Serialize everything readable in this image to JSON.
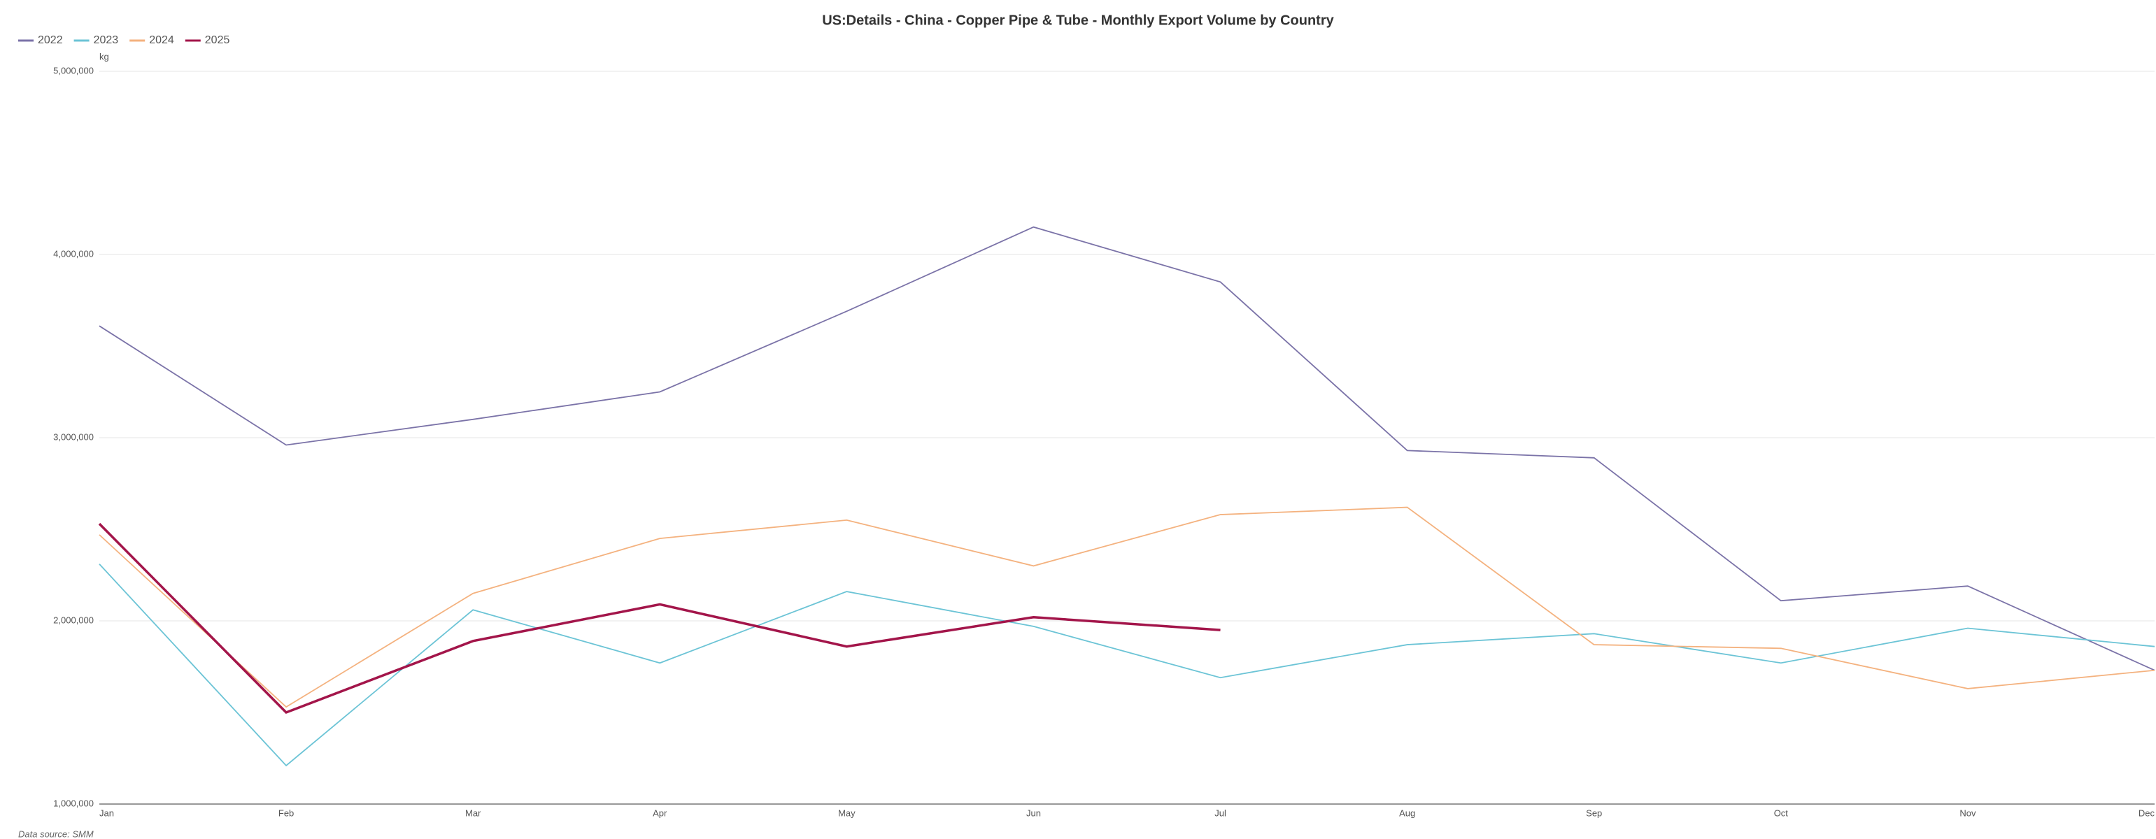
{
  "chart_data": {
    "type": "line",
    "title": "US:Details - China - Copper Pipe & Tube - Monthly Export Volume by Country",
    "y_unit": "kg",
    "source": "Data source:  SMM",
    "categories": [
      "Jan",
      "Feb",
      "Mar",
      "Apr",
      "May",
      "Jun",
      "Jul",
      "Aug",
      "Sep",
      "Oct",
      "Nov",
      "Dec"
    ],
    "series": [
      {
        "name": "2022",
        "color": "#7b73a8",
        "values": [
          3610000,
          2960000,
          3100000,
          3250000,
          3690000,
          4150000,
          3850000,
          2930000,
          2890000,
          2110000,
          2190000,
          1730000
        ]
      },
      {
        "name": "2023",
        "color": "#6cc4d6",
        "values": [
          2310000,
          1210000,
          2060000,
          1770000,
          2160000,
          1970000,
          1690000,
          1870000,
          1930000,
          1770000,
          1960000,
          1860000
        ]
      },
      {
        "name": "2024",
        "color": "#f4b27f",
        "values": [
          2470000,
          1530000,
          2150000,
          2450000,
          2550000,
          2300000,
          2580000,
          2620000,
          1870000,
          1850000,
          1630000,
          1730000
        ]
      },
      {
        "name": "2025",
        "color": "#a3154a",
        "values": [
          2530000,
          1500000,
          1890000,
          2090000,
          1860000,
          2020000,
          1950000,
          null,
          null,
          null,
          null,
          null
        ]
      }
    ],
    "ylim": [
      1000000,
      5000000
    ],
    "yticks": [
      {
        "value": 1000000,
        "label": "1,000,000"
      },
      {
        "value": 2000000,
        "label": "2,000,000"
      },
      {
        "value": 3000000,
        "label": "3,000,000"
      },
      {
        "value": 4000000,
        "label": "4,000,000"
      },
      {
        "value": 5000000,
        "label": "5,000,000"
      }
    ],
    "grid": true
  }
}
